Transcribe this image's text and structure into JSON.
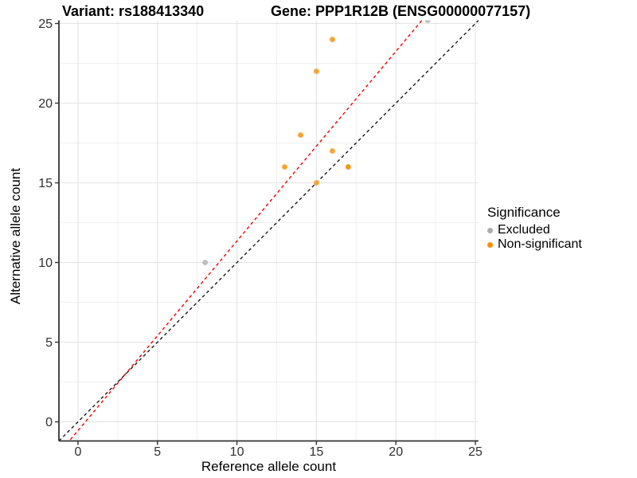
{
  "header": {
    "variant_title": "Variant: rs188413340",
    "gene_title": "Gene: PPP1R12B (ENSG00000077157)"
  },
  "legend": {
    "title": "Significance",
    "items": [
      {
        "label": "Excluded",
        "color": "#ABABAB"
      },
      {
        "label": "Non-significant",
        "color": "#FF8C00"
      }
    ]
  },
  "chart_data": {
    "type": "scatter",
    "title": "",
    "xlabel": "Reference allele count",
    "ylabel": "Alternative allele count",
    "xlim": [
      -1.2,
      25.2
    ],
    "ylim": [
      -1.2,
      25.2
    ],
    "xticks": [
      0,
      5,
      10,
      15,
      20,
      25
    ],
    "yticks": [
      0,
      5,
      10,
      15,
      20,
      25
    ],
    "minor_grid_step": 2.5,
    "grid": "major+minor",
    "legend_position": "right",
    "series": [
      {
        "name": "Excluded",
        "color": "#BDBDBD",
        "points": [
          {
            "x": 8,
            "y": 10
          },
          {
            "x": 22,
            "y": 25.2
          }
        ]
      },
      {
        "name": "Non-significant",
        "color": "#FFA333",
        "points": [
          {
            "x": 16,
            "y": 24
          },
          {
            "x": 15,
            "y": 22
          },
          {
            "x": 14,
            "y": 18
          },
          {
            "x": 16,
            "y": 17
          },
          {
            "x": 13,
            "y": 16
          },
          {
            "x": 17,
            "y": 16,
            "color": "#FF9214"
          },
          {
            "x": 15,
            "y": 15
          }
        ]
      }
    ],
    "lines": [
      {
        "name": "identity",
        "slope": 1,
        "intercept": 0,
        "color": "#1A1A1A",
        "style": "dashed"
      },
      {
        "name": "expected-ratio",
        "slope": 1.19,
        "intercept": -0.55,
        "color": "#EE0000",
        "style": "dashed"
      }
    ],
    "colors": {
      "grid_major": "#E3E3E3",
      "grid_minor": "#EFEFEF",
      "axis_line": "#333333",
      "tick_text": "#303030",
      "background": "#FFFFFF"
    }
  }
}
